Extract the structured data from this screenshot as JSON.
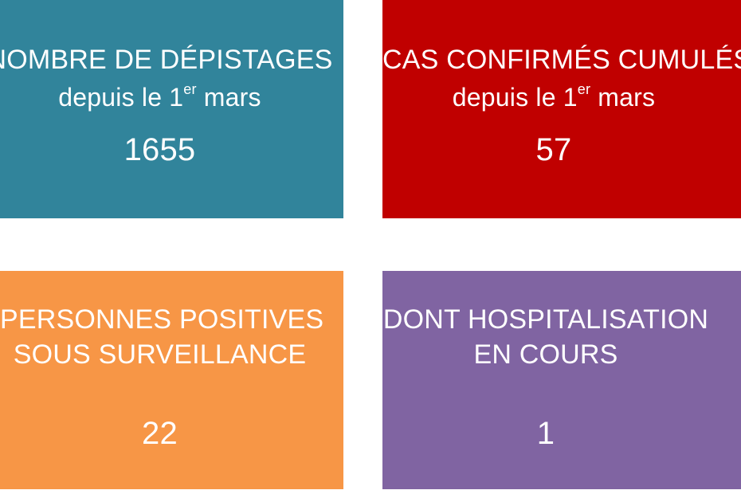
{
  "tiles": {
    "depistages": {
      "title": "NOMBRE DE DÉPISTAGES",
      "subtitle_prefix": "depuis le 1",
      "subtitle_sup": "er",
      "subtitle_suffix": " mars",
      "value": "1655",
      "color": "#31849b"
    },
    "cas_confirmes": {
      "title": "CAS CONFIRMÉS CUMULÉS",
      "subtitle_prefix": "depuis le 1",
      "subtitle_sup": "er",
      "subtitle_suffix": " mars",
      "value": "57",
      "color": "#c00000"
    },
    "personnes_positives": {
      "title_line1": "PERSONNES POSITIVES",
      "title_line2": "SOUS SURVEILLANCE",
      "value": "22",
      "color": "#f79646"
    },
    "hospitalisation": {
      "title_line1": "DONT HOSPITALISATION",
      "title_line2": "EN COURS",
      "value": "1",
      "color": "#8064a2"
    }
  }
}
